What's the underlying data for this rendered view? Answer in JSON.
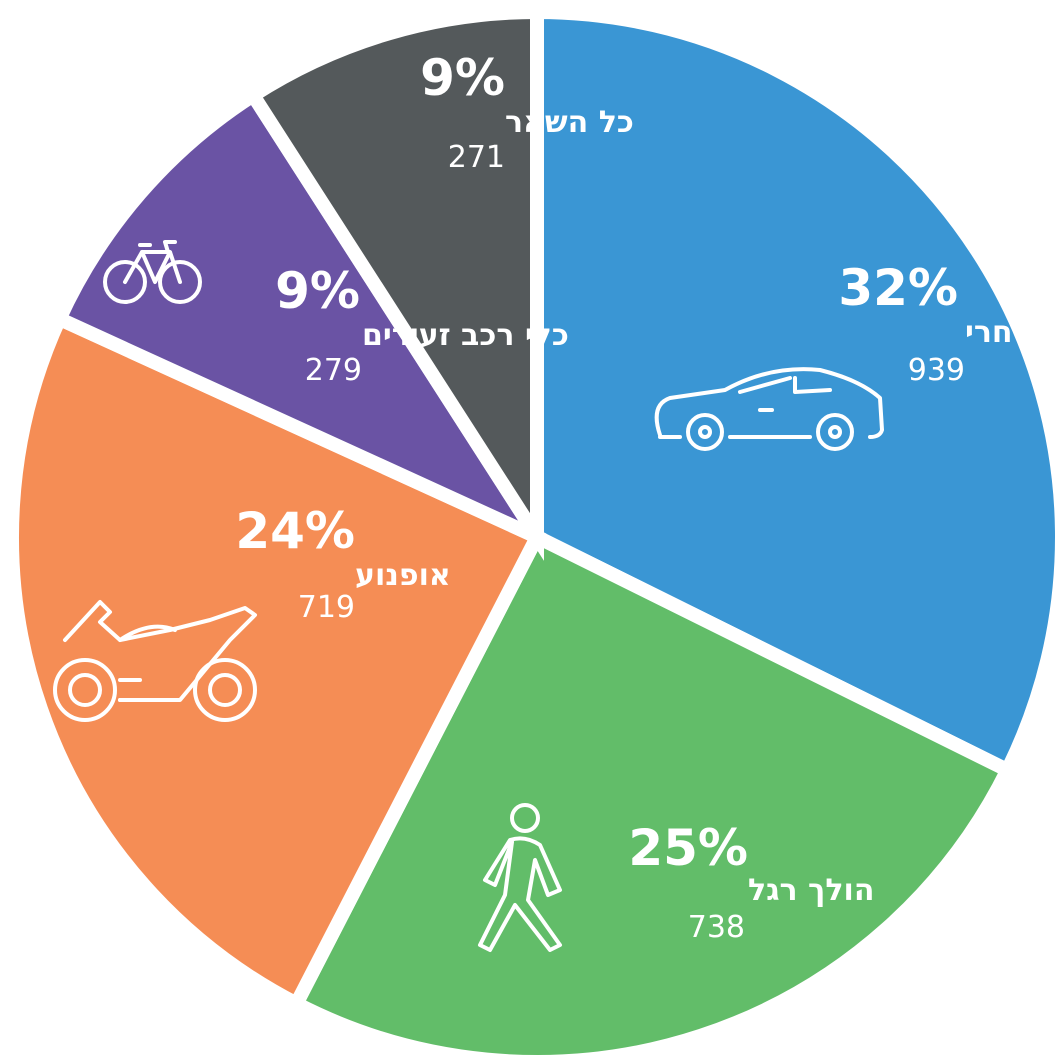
{
  "chart_data": {
    "type": "pie",
    "categories": [
      "רכב פרטי ומסחרי",
      "הולך רגל",
      "אופנוע",
      "כלי רכב זעירים",
      "כל השאר"
    ],
    "values": [
      32,
      25,
      24,
      9,
      9
    ],
    "value_labels": [
      "32%",
      "25%",
      "24%",
      "9%",
      "9%"
    ],
    "counts": [
      939,
      738,
      719,
      279,
      271
    ],
    "colors": [
      "#3a96d4",
      "#62bd69",
      "#f58d55",
      "#6a53a4",
      "#54595b"
    ]
  }
}
